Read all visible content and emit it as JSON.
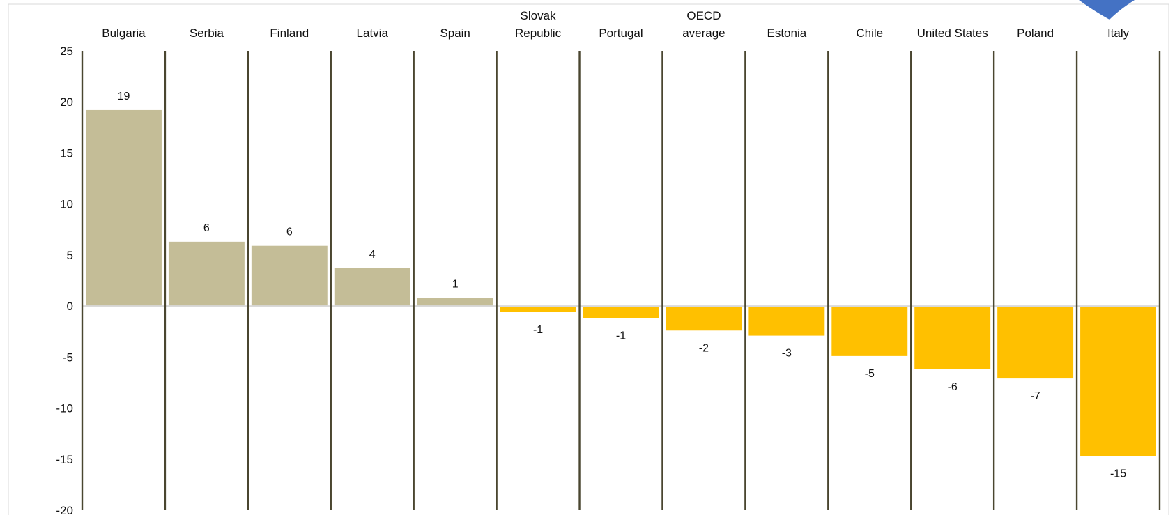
{
  "chart_data": {
    "type": "bar",
    "title": "",
    "xlabel": "",
    "ylabel": "",
    "ylim": [
      -20,
      25
    ],
    "yticks": [
      25,
      20,
      15,
      10,
      5,
      0,
      -5,
      -10,
      -15,
      -20
    ],
    "categories": [
      [
        "Bulgaria"
      ],
      [
        "Serbia"
      ],
      [
        "Finland"
      ],
      [
        "Latvia"
      ],
      [
        "Spain"
      ],
      [
        "Slovak",
        "Republic"
      ],
      [
        "Portugal"
      ],
      [
        "OECD",
        "average"
      ],
      [
        "Estonia"
      ],
      [
        "Chile"
      ],
      [
        "United States"
      ],
      [
        "Poland"
      ],
      [
        "Italy"
      ]
    ],
    "values": [
      19.2,
      6.3,
      5.9,
      3.7,
      0.8,
      -0.6,
      -1.2,
      -2.4,
      -2.9,
      -4.9,
      -6.2,
      -7.1,
      -14.7
    ],
    "data_labels": [
      "19",
      "6",
      "6",
      "4",
      "1",
      "-1",
      "-1",
      "-2",
      "-3",
      "-5",
      "-6",
      "-7",
      "-15"
    ],
    "colors": {
      "positive": "#c4bd97",
      "negative": "#ffc000",
      "separator": "#4a4630",
      "zero_line": "#d9d9d9"
    },
    "grid": false,
    "legend": "none"
  }
}
